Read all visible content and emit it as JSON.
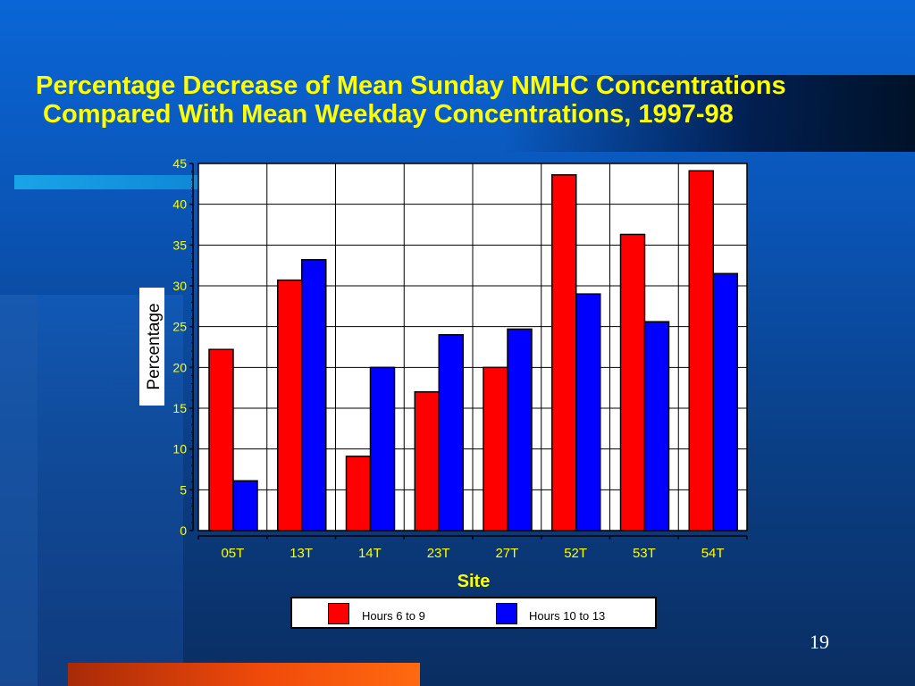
{
  "slide": {
    "title_lines": [
      "Percentage Decrease of Mean Sunday NMHC Concentrations",
      " Compared With Mean Weekday Concentrations, 1997-98"
    ],
    "page_number": "19"
  },
  "colors": {
    "title": "#ffff00",
    "series_red": "#ff0000",
    "series_blue": "#0000ff",
    "plot_bg": "#ffffff",
    "axis_text": "#ffff00",
    "xlabel": "#ffff00"
  },
  "chart_data": {
    "type": "bar",
    "title": "",
    "xlabel": "Site",
    "ylabel": "Percentage",
    "ylim": [
      0,
      45
    ],
    "yticks": [
      0,
      5,
      10,
      15,
      20,
      25,
      30,
      35,
      40,
      45
    ],
    "grid": true,
    "legend_position": "bottom",
    "categories": [
      "05T",
      "13T",
      "14T",
      "23T",
      "27T",
      "52T",
      "53T",
      "54T"
    ],
    "series": [
      {
        "name": "Hours 6 to 9",
        "color": "#ff0000",
        "values": [
          22.2,
          30.7,
          9.1,
          17.0,
          20.0,
          43.6,
          36.3,
          44.1
        ]
      },
      {
        "name": "Hours 10 to 13",
        "color": "#0000ff",
        "values": [
          6.1,
          33.2,
          20.0,
          24.0,
          24.7,
          29.0,
          25.6,
          31.5
        ]
      }
    ]
  }
}
